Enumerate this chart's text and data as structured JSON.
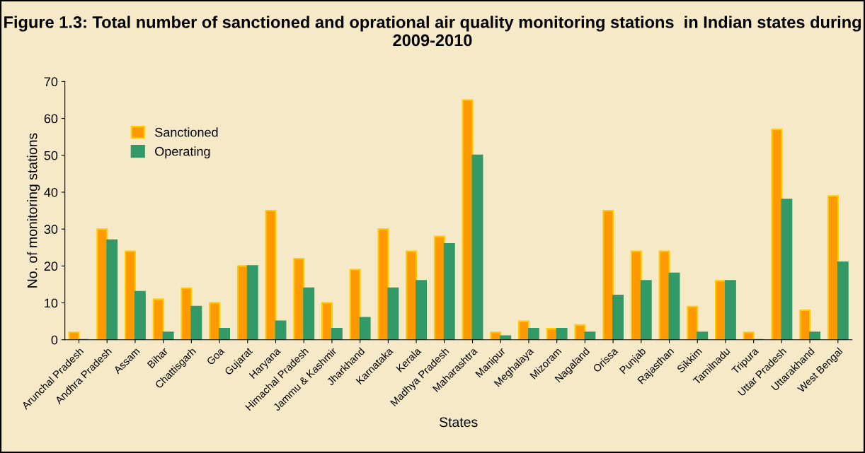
{
  "chart_data": {
    "type": "bar",
    "title": "Figure 1.3: Total number of sanctioned and oprational air quality monitoring stations  in Indian states during 2009-2010",
    "xlabel": "States",
    "ylabel": "No. of monitoring stations",
    "categories": [
      "Arunchal Pradesh",
      "Andhra Pradesh",
      "Assam",
      "Bihar",
      "Chattisgarh",
      "Goa",
      "Gujarat",
      "Haryana",
      "Himachal Pradesh",
      "Jammu & Kashmir",
      "Jharkhand",
      "Karnataka",
      "Kerala",
      "Madhya Pradesh",
      "Maharashtra",
      "Manipur",
      "Meghalaya",
      "Mizoram",
      "Nagaland",
      "Orissa",
      "Punjab",
      "Rajasthan",
      "Sikkim",
      "Tamilnadu",
      "Tripura",
      "Uttar Pradesh",
      "Uttarakhand",
      "West Bengal"
    ],
    "series": [
      {
        "name": "Sanctioned",
        "color": "#ff9900",
        "values": [
          2,
          30,
          24,
          11,
          14,
          10,
          20,
          35,
          22,
          10,
          19,
          30,
          24,
          28,
          65,
          2,
          5,
          3,
          4,
          35,
          24,
          24,
          9,
          16,
          2,
          57,
          8,
          39
        ]
      },
      {
        "name": "Operating",
        "color": "#339966",
        "values": [
          0,
          27,
          13,
          2,
          9,
          3,
          20,
          5,
          14,
          3,
          6,
          14,
          16,
          26,
          50,
          1,
          3,
          3,
          2,
          12,
          16,
          18,
          2,
          16,
          0,
          38,
          2,
          21
        ]
      }
    ],
    "ylim": [
      0,
      70
    ],
    "yticks": [
      0,
      10,
      20,
      30,
      40,
      50,
      60,
      70
    ],
    "grid": false,
    "legend": "top left"
  }
}
